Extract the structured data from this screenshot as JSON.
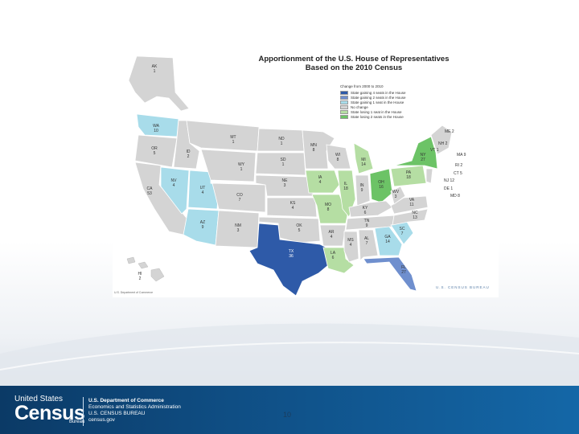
{
  "map": {
    "title_line1": "Apportionment of the U.S. House of Representatives",
    "title_line2": "Based on the 2010 Census",
    "legend": {
      "heading": "Change from 2000 to 2010",
      "items": [
        {
          "label": "State gaining 4 seats in the House",
          "color": "#2e5aa8"
        },
        {
          "label": "State gaining 2 seats in the House",
          "color": "#6f8fce"
        },
        {
          "label": "State gaining 1 seat in the House",
          "color": "#a8dcea"
        },
        {
          "label": "No change",
          "color": "#d4d4d4"
        },
        {
          "label": "State losing 1 seat in the House",
          "color": "#b5dea3"
        },
        {
          "label": "State losing 2 seats in the House",
          "color": "#6cc366"
        }
      ]
    },
    "states": {
      "AK": {
        "code": "AK",
        "seats": "1"
      },
      "WA": {
        "code": "WA",
        "seats": "10"
      },
      "OR": {
        "code": "OR",
        "seats": "5"
      },
      "CA": {
        "code": "CA",
        "seats": "53"
      },
      "NV": {
        "code": "NV",
        "seats": "4"
      },
      "ID": {
        "code": "ID",
        "seats": "2"
      },
      "MT": {
        "code": "MT",
        "seats": "1"
      },
      "WY": {
        "code": "WY",
        "seats": "1"
      },
      "UT": {
        "code": "UT",
        "seats": "4"
      },
      "AZ": {
        "code": "AZ",
        "seats": "9"
      },
      "CO": {
        "code": "CO",
        "seats": "7"
      },
      "NM": {
        "code": "NM",
        "seats": "3"
      },
      "ND": {
        "code": "ND",
        "seats": "1"
      },
      "SD": {
        "code": "SD",
        "seats": "1"
      },
      "NE": {
        "code": "NE",
        "seats": "3"
      },
      "KS": {
        "code": "KS",
        "seats": "4"
      },
      "OK": {
        "code": "OK",
        "seats": "5"
      },
      "TX": {
        "code": "TX",
        "seats": "36"
      },
      "MN": {
        "code": "MN",
        "seats": "8"
      },
      "IA": {
        "code": "IA",
        "seats": "4"
      },
      "MO": {
        "code": "MO",
        "seats": "8"
      },
      "AR": {
        "code": "AR",
        "seats": "4"
      },
      "LA": {
        "code": "LA",
        "seats": "6"
      },
      "WI": {
        "code": "WI",
        "seats": "8"
      },
      "IL": {
        "code": "IL",
        "seats": "18"
      },
      "MI": {
        "code": "MI",
        "seats": "14"
      },
      "IN": {
        "code": "IN",
        "seats": "9"
      },
      "OH": {
        "code": "OH",
        "seats": "16"
      },
      "KY": {
        "code": "KY",
        "seats": "6"
      },
      "TN": {
        "code": "TN",
        "seats": "9"
      },
      "MS": {
        "code": "MS",
        "seats": "4"
      },
      "AL": {
        "code": "AL",
        "seats": "7"
      },
      "GA": {
        "code": "GA",
        "seats": "14"
      },
      "FL": {
        "code": "FL",
        "seats": "27"
      },
      "SC": {
        "code": "SC",
        "seats": "7"
      },
      "NC": {
        "code": "NC",
        "seats": "13"
      },
      "VA": {
        "code": "VA",
        "seats": "11"
      },
      "WV": {
        "code": "WV",
        "seats": "3"
      },
      "PA": {
        "code": "PA",
        "seats": "18"
      },
      "NY": {
        "code": "NY",
        "seats": "27"
      },
      "HI": {
        "code": "HI",
        "seats": "2"
      }
    },
    "northeast": {
      "ME": "ME 2",
      "NH": "NH 2",
      "VT": "VT 1",
      "MA": "MA 9",
      "RI": "RI 2",
      "CT": "CT 5",
      "NJ": "NJ 12",
      "DE": "DE 1",
      "MD": "MD 8"
    },
    "source_left": "U.S. Department of Commerce",
    "bureau_mark": "U.S. CENSUS BUREAU"
  },
  "footer": {
    "logo_top": "United States",
    "logo_main": "Census",
    "logo_bureau": "Bureau",
    "dept_line1": "U.S. Department of Commerce",
    "dept_line2": "Economics and Statistics Administration",
    "dept_line3": "U.S. CENSUS BUREAU",
    "dept_line4": "census.gov",
    "page_number": "10"
  },
  "colors": {
    "gain4": "#2e5aa8",
    "gain2": "#6f8fce",
    "gain1": "#a8dcea",
    "none": "#d4d4d4",
    "lose1": "#b5dea3",
    "lose2": "#6cc366",
    "footer": "#0f4e84"
  }
}
